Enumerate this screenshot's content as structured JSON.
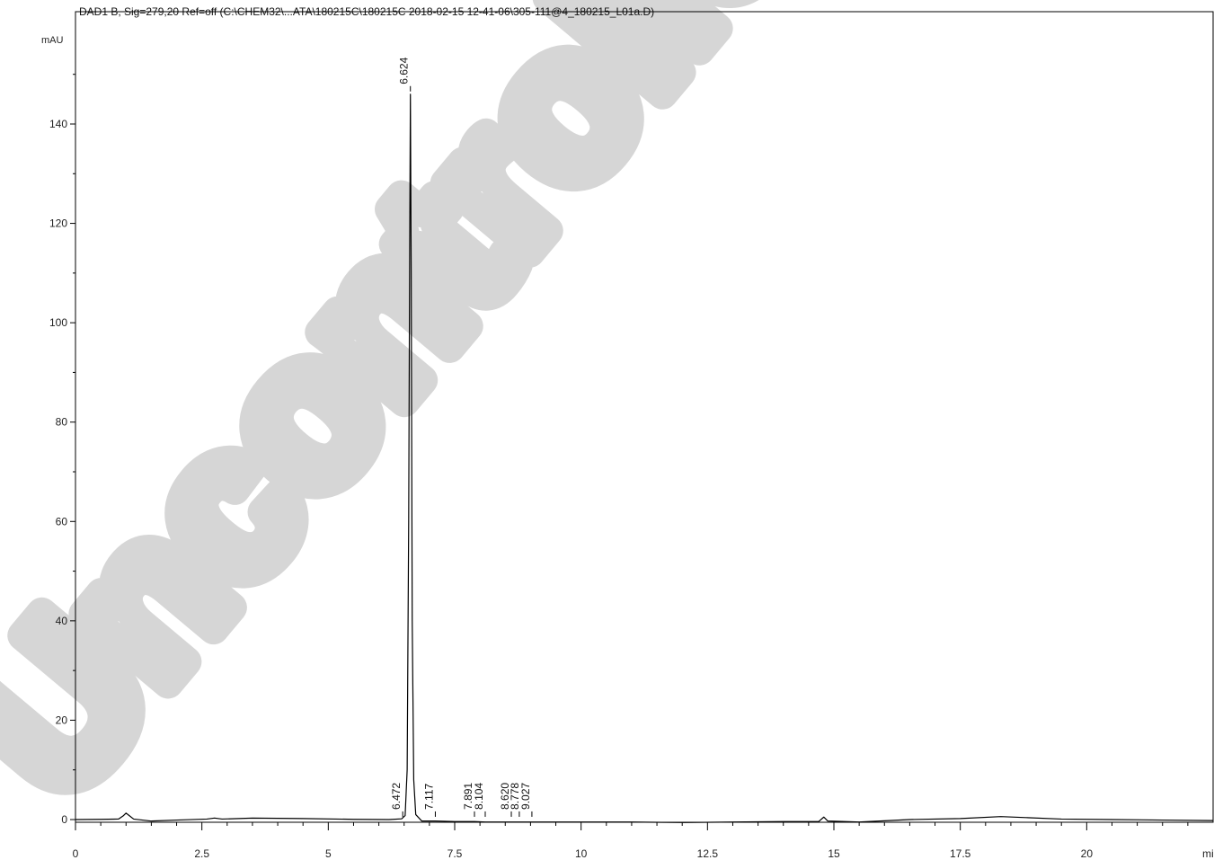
{
  "chart_data": {
    "type": "line",
    "title": "DAD1 B, Sig=279,20 Ref=off (C:\\CHEM32\\...ATA\\180215C\\180215C 2018-02-15 12-41-06\\305-111@4_180215_L01a.D)",
    "ylabel": "mAU",
    "xlabel": "mi",
    "xlim": [
      0,
      22.5
    ],
    "ylim": [
      -3,
      157
    ],
    "x_ticks": [
      0,
      2.5,
      5,
      7.5,
      10,
      12.5,
      15,
      17.5,
      20
    ],
    "x_tick_labels": [
      "0",
      "2.5",
      "5",
      "7.5",
      "10",
      "12.5",
      "15",
      "17.5",
      "20"
    ],
    "y_ticks": [
      0,
      20,
      40,
      60,
      80,
      100,
      120,
      140
    ],
    "y_tick_labels": [
      "0",
      "20",
      "40",
      "60",
      "80",
      "100",
      "120",
      "140"
    ],
    "grid": false,
    "series": [
      {
        "color": "#000000",
        "points": [
          [
            0,
            0.0
          ],
          [
            0.5,
            0.05
          ],
          [
            0.85,
            0.1
          ],
          [
            0.95,
            0.8
          ],
          [
            1.0,
            1.3
          ],
          [
            1.05,
            0.9
          ],
          [
            1.15,
            0.1
          ],
          [
            1.5,
            -0.3
          ],
          [
            2.0,
            -0.1
          ],
          [
            2.6,
            0.1
          ],
          [
            2.75,
            0.3
          ],
          [
            2.9,
            0.1
          ],
          [
            3.5,
            0.3
          ],
          [
            4.5,
            0.2
          ],
          [
            5.5,
            0.05
          ],
          [
            6.2,
            0.0
          ],
          [
            6.45,
            0.15
          ],
          [
            6.52,
            0.8
          ],
          [
            6.56,
            10.0
          ],
          [
            6.59,
            60.0
          ],
          [
            6.61,
            115.0
          ],
          [
            6.624,
            146.0
          ],
          [
            6.64,
            110.0
          ],
          [
            6.66,
            40.0
          ],
          [
            6.69,
            8.0
          ],
          [
            6.73,
            1.0
          ],
          [
            6.85,
            -0.3
          ],
          [
            7.117,
            -0.3
          ],
          [
            7.5,
            -0.4
          ],
          [
            7.891,
            -0.4
          ],
          [
            8.104,
            -0.5
          ],
          [
            8.62,
            -0.5
          ],
          [
            9.027,
            -0.5
          ],
          [
            10.0,
            -0.5
          ],
          [
            11.0,
            -0.5
          ],
          [
            12.0,
            -0.6
          ],
          [
            13.0,
            -0.5
          ],
          [
            14.0,
            -0.4
          ],
          [
            14.7,
            -0.4
          ],
          [
            14.8,
            0.5
          ],
          [
            14.88,
            -0.3
          ],
          [
            15.5,
            -0.5
          ],
          [
            16.5,
            0.0
          ],
          [
            17.5,
            0.2
          ],
          [
            18.3,
            0.6
          ],
          [
            18.8,
            0.4
          ],
          [
            19.5,
            0.1
          ],
          [
            20.5,
            0.0
          ],
          [
            21.5,
            -0.1
          ],
          [
            22.5,
            -0.2
          ]
        ]
      }
    ],
    "peaks": [
      {
        "rt": 6.472,
        "label": "6.472",
        "label_y": 2
      },
      {
        "rt": 6.624,
        "label": "6.624",
        "label_y": 148
      },
      {
        "rt": 7.117,
        "label": "7.117",
        "label_y": 2
      },
      {
        "rt": 7.891,
        "label": "7.891",
        "label_y": 2
      },
      {
        "rt": 8.104,
        "label": "8.104",
        "label_y": 2
      },
      {
        "rt": 8.62,
        "label": "8.620",
        "label_y": 2
      },
      {
        "rt": 8.778,
        "label": "8.778",
        "label_y": 2
      },
      {
        "rt": 9.027,
        "label": "9.027",
        "label_y": 2
      }
    ],
    "watermark": "Uncontrolled"
  }
}
